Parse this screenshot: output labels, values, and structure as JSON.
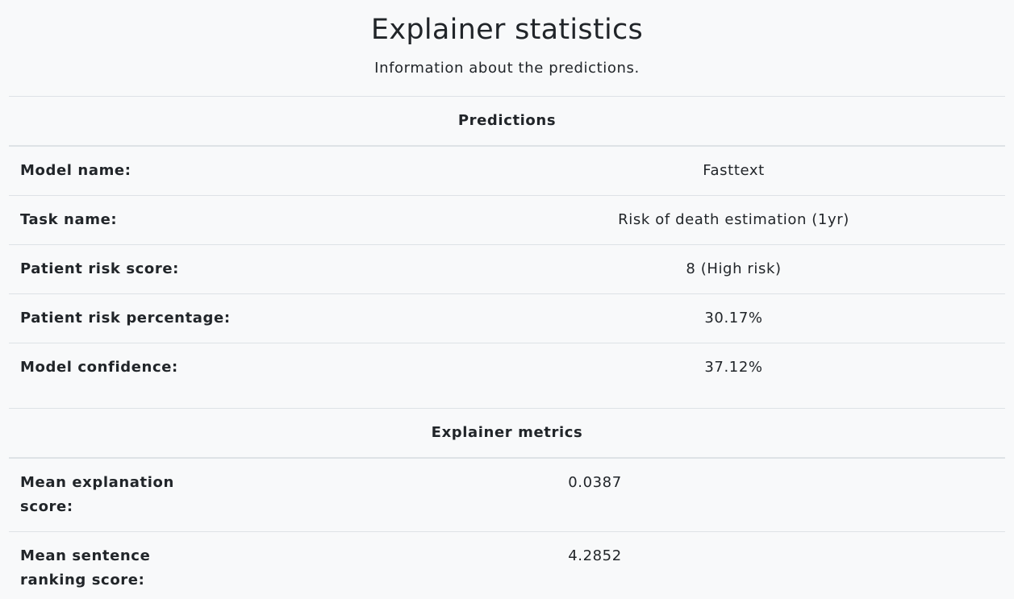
{
  "header": {
    "title": "Explainer statistics",
    "subtitle": "Information about the predictions."
  },
  "predictions": {
    "heading": "Predictions",
    "rows": [
      {
        "label": "Model name:",
        "value": "Fasttext"
      },
      {
        "label": "Task name:",
        "value": "Risk of death estimation (1yr)"
      },
      {
        "label": "Patient risk score:",
        "value": "8 (High risk)"
      },
      {
        "label": "Patient risk percentage:",
        "value": "30.17%"
      },
      {
        "label": "Model confidence:",
        "value": "37.12%"
      }
    ]
  },
  "explainer_metrics": {
    "heading": "Explainer metrics",
    "rows": [
      {
        "label_line1": "Mean explanation",
        "label_line2": "score:",
        "value": "0.0387"
      },
      {
        "label_line1": "Mean sentence",
        "label_line2": "ranking score:",
        "value": "4.2852"
      }
    ]
  }
}
